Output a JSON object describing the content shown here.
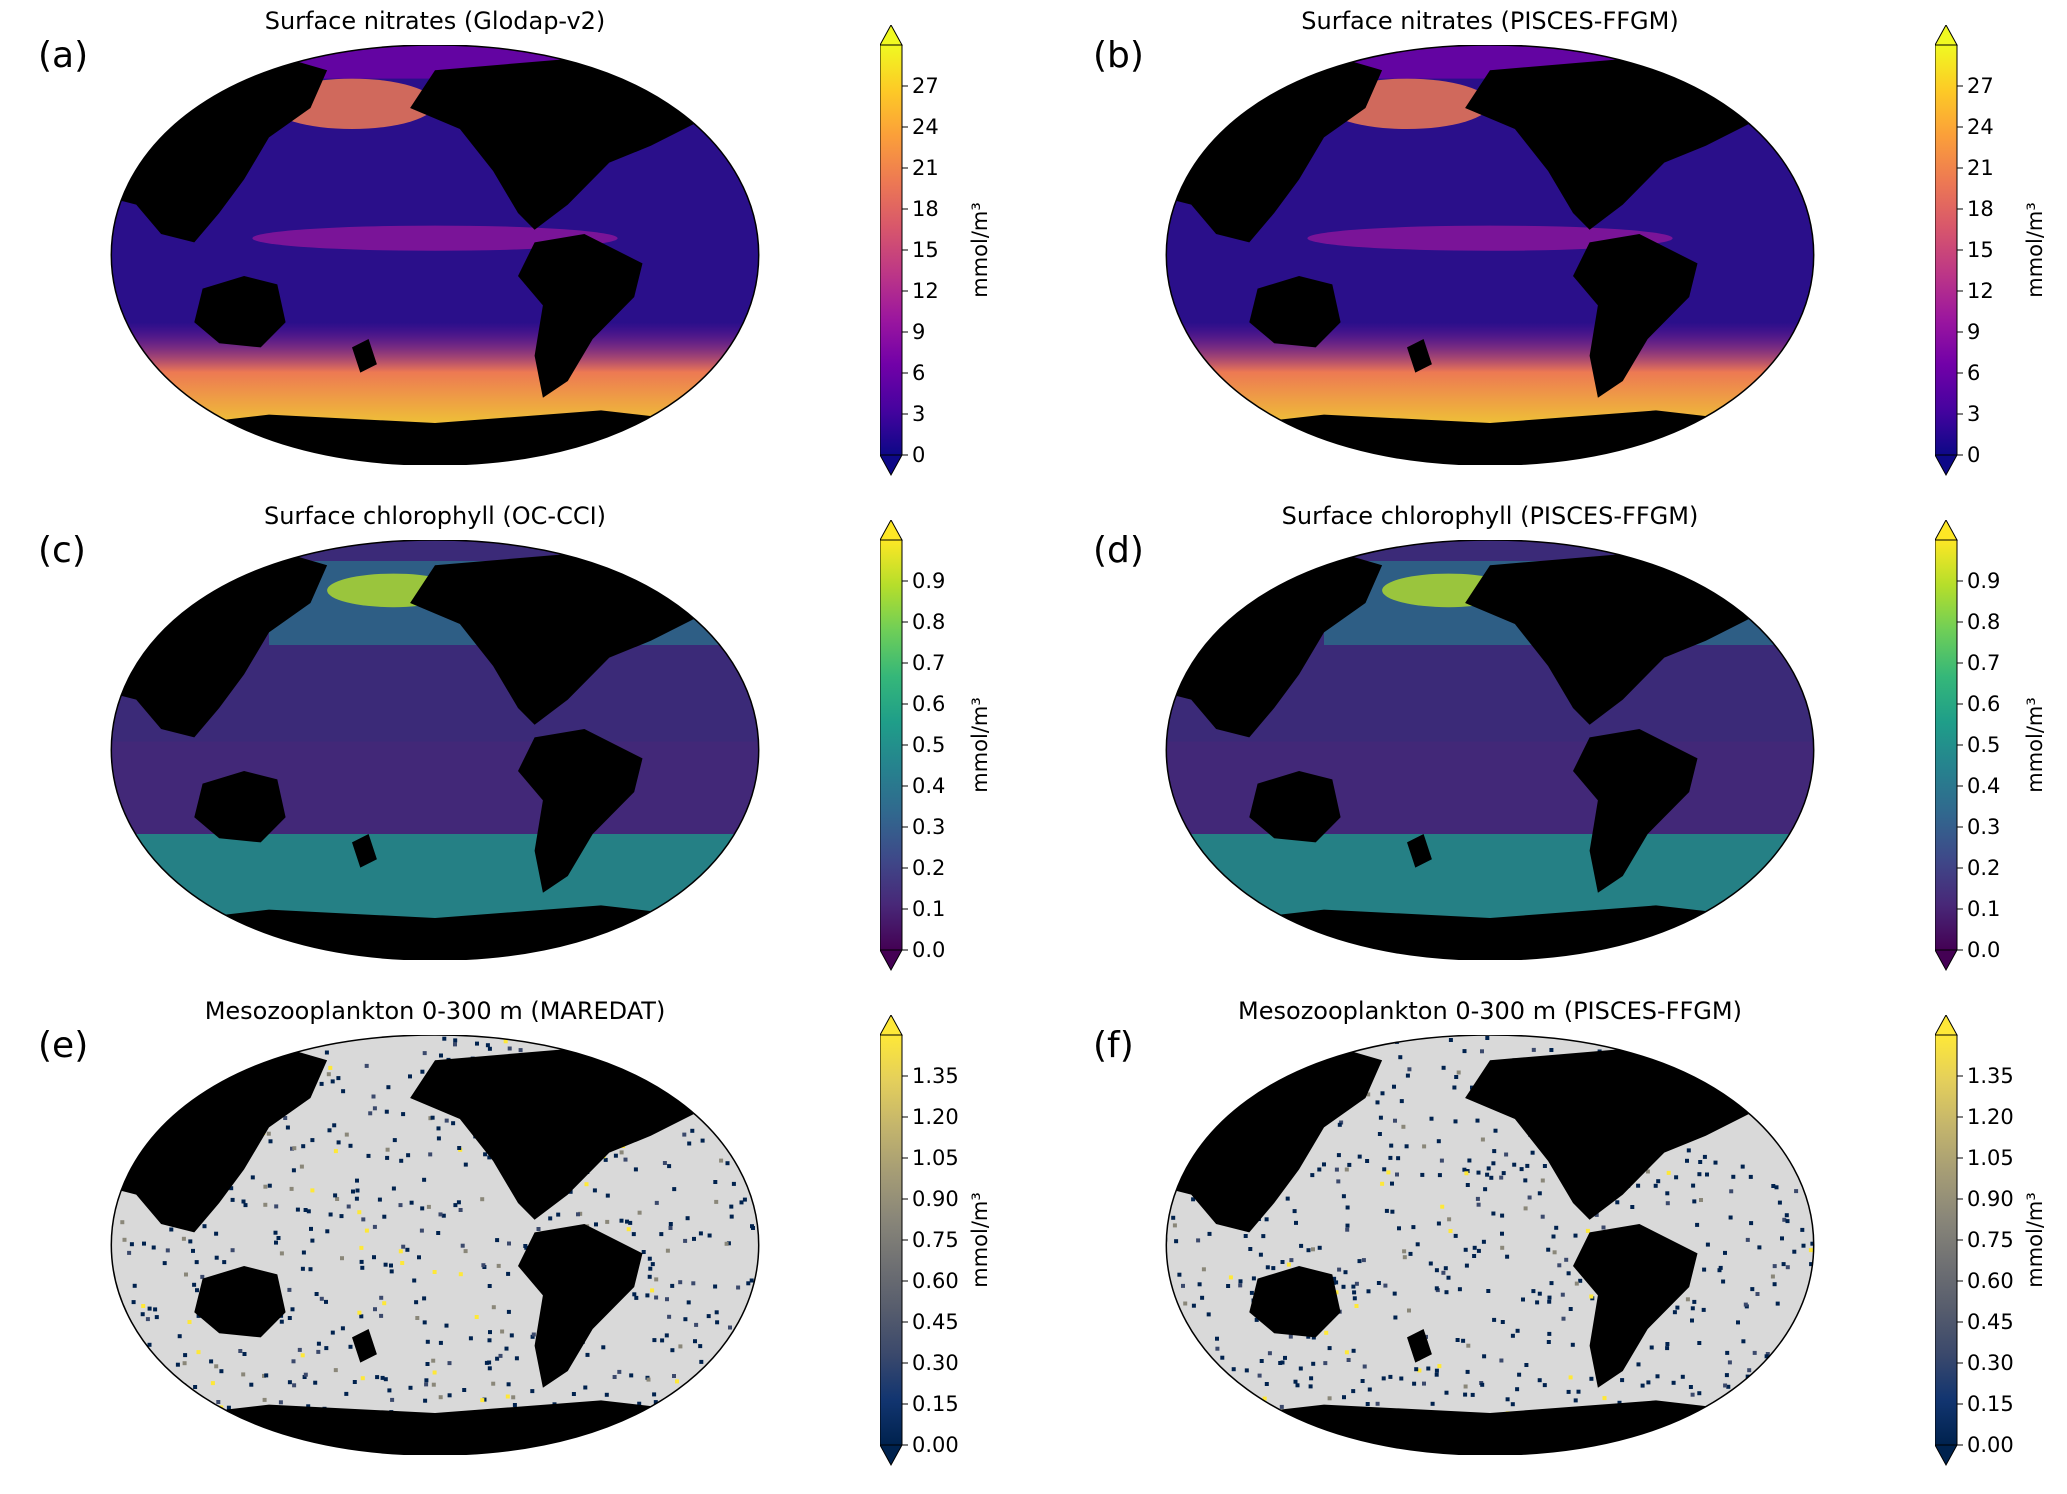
{
  "panels": [
    {
      "label": "(a)",
      "title": "Surface nitrates (Glodap-v2)",
      "cmap": "plasma",
      "land": "#000000",
      "ocean_base": "#2a0f8a",
      "kind": "nitrate",
      "colorbar": {
        "ticks": [
          "0",
          "3",
          "6",
          "9",
          "12",
          "15",
          "18",
          "21",
          "24",
          "27"
        ],
        "unit": "mmol/m³"
      }
    },
    {
      "label": "(b)",
      "title": "Surface nitrates (PISCES-FFGM)",
      "cmap": "plasma",
      "land": "#000000",
      "ocean_base": "#2a0f8a",
      "kind": "nitrate",
      "colorbar": {
        "ticks": [
          "0",
          "3",
          "6",
          "9",
          "12",
          "15",
          "18",
          "21",
          "24",
          "27"
        ],
        "unit": "mmol/m³"
      }
    },
    {
      "label": "(c)",
      "title": "Surface chlorophyll (OC-CCI)",
      "cmap": "viridis",
      "land": "#000000",
      "ocean_base": "#3b2a78",
      "kind": "chl",
      "colorbar": {
        "ticks": [
          "0.0",
          "0.1",
          "0.2",
          "0.3",
          "0.4",
          "0.5",
          "0.6",
          "0.7",
          "0.8",
          "0.9"
        ],
        "unit": "mmol/m³"
      }
    },
    {
      "label": "(d)",
      "title": "Surface chlorophyll (PISCES-FFGM)",
      "cmap": "viridis",
      "land": "#000000",
      "ocean_base": "#3b2a78",
      "kind": "chl",
      "colorbar": {
        "ticks": [
          "0.0",
          "0.1",
          "0.2",
          "0.3",
          "0.4",
          "0.5",
          "0.6",
          "0.7",
          "0.8",
          "0.9"
        ],
        "unit": "mmol/m³"
      }
    },
    {
      "label": "(e)",
      "title": "Mesozooplankton 0-300 m (MAREDAT)",
      "cmap": "cividis",
      "land": "#000000",
      "ocean_base": "#d9d9d9",
      "kind": "zoo",
      "colorbar": {
        "ticks": [
          "0.00",
          "0.15",
          "0.30",
          "0.45",
          "0.60",
          "0.75",
          "0.90",
          "1.05",
          "1.20",
          "1.35"
        ],
        "unit": "mmol/m³"
      }
    },
    {
      "label": "(f)",
      "title": "Mesozooplankton 0-300 m (PISCES-FFGM)",
      "cmap": "cividis",
      "land": "#000000",
      "ocean_base": "#d9d9d9",
      "kind": "zoo",
      "colorbar": {
        "ticks": [
          "0.00",
          "0.15",
          "0.30",
          "0.45",
          "0.60",
          "0.75",
          "0.90",
          "1.05",
          "1.20",
          "1.35"
        ],
        "unit": "mmol/m³"
      }
    }
  ],
  "colormaps": {
    "plasma": [
      "#0d0887",
      "#46039f",
      "#7201a8",
      "#9c179e",
      "#bd3786",
      "#d8576b",
      "#ed7953",
      "#fb9f3a",
      "#fdca26",
      "#f0f921"
    ],
    "viridis": [
      "#440154",
      "#482878",
      "#3e4989",
      "#31688e",
      "#26828e",
      "#1f9e89",
      "#35b779",
      "#6ece58",
      "#b5de2b",
      "#fde725"
    ],
    "cividis": [
      "#00224e",
      "#123570",
      "#3b496c",
      "#575d6d",
      "#707173",
      "#8a8779",
      "#a69d75",
      "#c4b56c",
      "#e4cf5b",
      "#fee838"
    ]
  }
}
